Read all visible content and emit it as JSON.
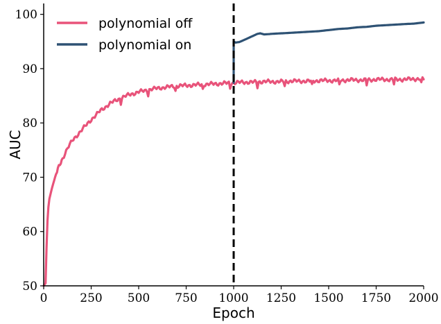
{
  "chart_data": {
    "type": "line",
    "title": "",
    "xlabel": "Epoch",
    "ylabel": "AUC",
    "xlim": [
      0,
      2000
    ],
    "ylim": [
      50,
      102
    ],
    "grid": false,
    "legend_position": "top-left",
    "x_ticks": [
      0,
      250,
      500,
      750,
      1000,
      1250,
      1500,
      1750,
      2000
    ],
    "y_ticks": [
      50,
      60,
      70,
      80,
      90,
      100
    ],
    "x_tick_labels": [
      "0",
      "250",
      "500",
      "750",
      "1000",
      "1250",
      "1500",
      "1750",
      "2000"
    ],
    "y_tick_labels": [
      "50",
      "60",
      "70",
      "80",
      "90",
      "100"
    ],
    "vline": {
      "x": 1000,
      "style": "dashed",
      "color": "#000000"
    },
    "series": [
      {
        "name": "polynomial off",
        "color": "#e8537a",
        "x": [
          0,
          10,
          15,
          20,
          25,
          30,
          40,
          50,
          60,
          75,
          90,
          100,
          125,
          150,
          175,
          200,
          250,
          300,
          350,
          400,
          450,
          500,
          550,
          600,
          650,
          700,
          750,
          800,
          850,
          900,
          950,
          1000,
          1050,
          1100,
          1150,
          1200,
          1250,
          1300,
          1350,
          1400,
          1450,
          1500,
          1550,
          1600,
          1650,
          1700,
          1750,
          1800,
          1850,
          1900,
          1950,
          2000
        ],
        "values": [
          50.0,
          50.5,
          57.0,
          62.0,
          64.5,
          66.0,
          67.5,
          68.8,
          70.0,
          71.5,
          72.7,
          73.5,
          75.3,
          76.7,
          77.7,
          78.7,
          80.6,
          82.3,
          83.6,
          84.5,
          85.2,
          85.7,
          86.1,
          86.4,
          86.6,
          86.8,
          86.9,
          87.0,
          87.1,
          87.2,
          87.3,
          87.4,
          87.5,
          87.5,
          87.6,
          87.6,
          87.6,
          87.7,
          87.7,
          87.7,
          87.8,
          87.8,
          87.8,
          87.9,
          87.9,
          87.9,
          88.0,
          88.0,
          88.0,
          88.0,
          88.1,
          88.1
        ]
      },
      {
        "name": "polynomial on",
        "color": "#2e5274",
        "x": [
          1000,
          1010,
          1030,
          1050,
          1075,
          1100,
          1125,
          1140,
          1160,
          1200,
          1250,
          1300,
          1350,
          1400,
          1450,
          1500,
          1550,
          1600,
          1650,
          1700,
          1750,
          1800,
          1850,
          1900,
          1950,
          2000
        ],
        "values": [
          95.0,
          94.8,
          94.9,
          95.2,
          95.6,
          96.0,
          96.4,
          96.5,
          96.3,
          96.4,
          96.5,
          96.6,
          96.7,
          96.8,
          96.9,
          97.1,
          97.3,
          97.4,
          97.6,
          97.7,
          97.9,
          98.0,
          98.1,
          98.2,
          98.3,
          98.5
        ]
      }
    ]
  }
}
